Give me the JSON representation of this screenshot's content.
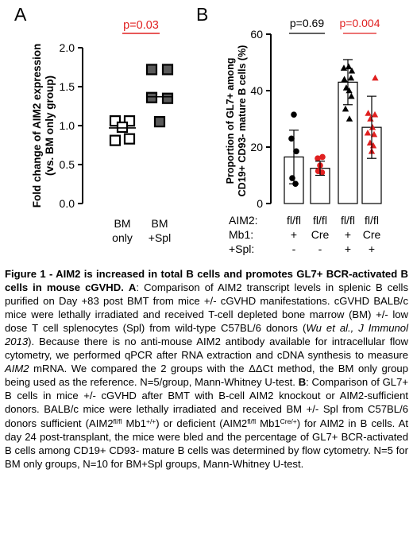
{
  "colors": {
    "red": "#e02020",
    "black": "#000000",
    "grey_fill": "#5a5a5a"
  },
  "panel_a": {
    "letter": "A",
    "pvalue": "p=0.03"
  },
  "panel_b": {
    "letter": "B",
    "pvalue_left": "p=0.69",
    "pvalue_right": "p=0.004"
  },
  "chart_data": [
    {
      "type": "scatter",
      "panel": "A",
      "ylabel": "Fold change of AIM2 expression (vs. BM only group)",
      "ylim": [
        0,
        2.0
      ],
      "yticks": [
        0.0,
        0.5,
        1.0,
        1.5,
        2.0
      ],
      "ytick_labels": [
        "0.0",
        "0.5",
        "1.0",
        "1.5",
        "2.0"
      ],
      "categories": [
        "BM only",
        "BM +Spl"
      ],
      "category_lines": [
        [
          "BM",
          "only"
        ],
        [
          "BM",
          "+Spl"
        ]
      ],
      "series": [
        {
          "marker": "open-square",
          "points": [
            [
              -0.18,
              1.06
            ],
            [
              0.18,
              1.06
            ],
            [
              0,
              0.98
            ],
            [
              -0.18,
              0.81
            ],
            [
              0.18,
              0.83
            ]
          ],
          "median": 0.97
        },
        {
          "marker": "filled-square",
          "points": [
            [
              -0.2,
              1.72
            ],
            [
              0.2,
              1.72
            ],
            [
              -0.2,
              1.36
            ],
            [
              0.2,
              1.35
            ],
            [
              0,
              1.05
            ]
          ],
          "median": 1.37
        }
      ],
      "comparison": {
        "label": "p=0.03",
        "between": [
          0,
          1
        ]
      }
    },
    {
      "type": "bar",
      "panel": "B",
      "ylabel": "Proportion of GL7+ among CD19+ CD93- mature B cells (%)",
      "ylim": [
        0,
        60
      ],
      "yticks": [
        0,
        20,
        40,
        60
      ],
      "ytick_labels": [
        "0",
        "20",
        "40",
        "60"
      ],
      "categories": [
        "fl/fl + -",
        "fl/fl Cre -",
        "fl/fl + +",
        "fl/fl Cre +"
      ],
      "values": [
        16.5,
        12.5,
        43,
        27
      ],
      "errors": [
        9.5,
        2.5,
        8,
        11
      ],
      "point_colors": [
        "#000000",
        "#e02020",
        "#000000",
        "#e02020"
      ],
      "point_markers": [
        "circle",
        "circle",
        "triangle",
        "triangle"
      ],
      "points": [
        [
          [
            0,
            31.5
          ],
          [
            -0.15,
            23
          ],
          [
            0.15,
            18.5
          ],
          [
            -0.1,
            9
          ],
          [
            0.1,
            7
          ]
        ],
        [
          [
            -0.15,
            16
          ],
          [
            0.15,
            16.5
          ],
          [
            0,
            13.5
          ],
          [
            -0.12,
            11.5
          ],
          [
            0.12,
            11
          ]
        ],
        [
          [
            -0.25,
            48
          ],
          [
            0.05,
            48.5
          ],
          [
            0.25,
            47
          ],
          [
            -0.22,
            44
          ],
          [
            0.2,
            44.5
          ],
          [
            -0.1,
            41
          ],
          [
            0.08,
            40
          ],
          [
            0.22,
            38
          ],
          [
            -0.15,
            33.5
          ],
          [
            0.1,
            30
          ]
        ],
        [
          [
            0.22,
            44.5
          ],
          [
            -0.22,
            32
          ],
          [
            0.2,
            31.5
          ],
          [
            -0.08,
            30
          ],
          [
            0.05,
            27
          ],
          [
            -0.25,
            25
          ],
          [
            0.15,
            24.5
          ],
          [
            -0.1,
            21.5
          ],
          [
            0.1,
            20.5
          ],
          [
            0,
            18.5
          ]
        ]
      ],
      "comparisons": [
        {
          "label": "p=0.69",
          "between": [
            0,
            1
          ]
        },
        {
          "label": "p=0.004",
          "between": [
            2,
            3
          ]
        }
      ],
      "table": {
        "row_labels": [
          "AIM2:",
          "Mb1:",
          "+Spl:"
        ],
        "rows": [
          [
            "fl/fl",
            "fl/fl",
            "fl/fl",
            "fl/fl"
          ],
          [
            "+",
            "Cre",
            "+",
            "Cre"
          ],
          [
            "-",
            "-",
            "+",
            "+"
          ]
        ]
      }
    }
  ],
  "caption": {
    "title": "Figure 1 - AIM2 is increased in total B cells and promotes GL7+ BCR-activated B cells in mouse cGVHD.",
    "a_letter": "A",
    "a_text": ": Comparison of AIM2 transcript levels in splenic B cells purified on Day +83 post BMT from mice +/- cGVHD manifestations. cGVHD BALB/c mice were lethally irradiated and received T-cell depleted bone marrow (BM) +/- low dose T cell splenocytes (Spl) from wild-type C57BL/6 donors (",
    "citation": "Wu et al., J Immunol 2013",
    "a_text2": "). Because there is no anti-mouse AIM2 antibody available for intracellular flow cytometry, we performed qPCR after RNA extraction and cDNA synthesis to measure ",
    "gene": "AIM2",
    "a_text3": " mRNA. We compared the 2 groups with the ΔΔCt method, the BM only group being used as the reference. N=5/group, Mann-Whitney U-test. ",
    "b_letter": "B",
    "b_text": ": Comparison of GL7+ B cells in mice +/- cGVHD after BMT with B-cell AIM2 knockout or AIM2-sufficient donors. BALB/c mice were lethally irradiated and received BM +/- Spl from C57BL/6 donors sufficient (AIM2",
    "sup1": "fl/fl",
    "b_text2": " Mb1",
    "sup2": "+/+",
    "b_text3": ") or deficient (AIM2",
    "sup3": "fl/fl",
    "b_text4": " Mb1",
    "sup4": "Cre/+",
    "b_text5": ") for AIM2 in B cells. At day 24 post-transplant, the mice were bled and the percentage of GL7+ BCR-activated B cells among CD19+ CD93- mature B cells was determined by flow cytometry. N=5 for BM only groups, N=10 for BM+Spl groups, Mann-Whitney U-test."
  }
}
